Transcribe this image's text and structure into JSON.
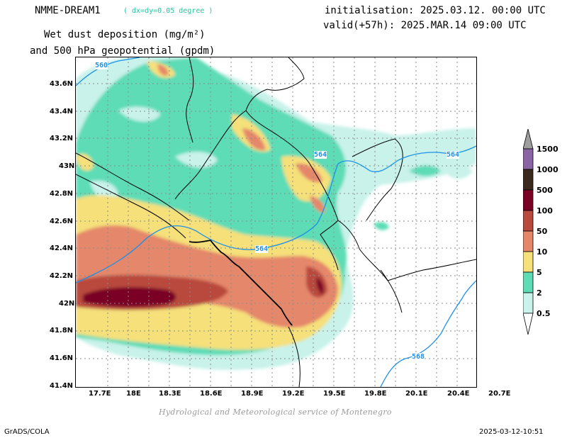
{
  "header": {
    "model": "NMME-DREAM1",
    "resolution": "( dx=dy=0.05 degree )",
    "field_line1": "Wet dust deposition (mg/m²)",
    "field_line2": "and 500 hPa geopotential (gpdm)",
    "init": "initialisation: 2025.03.12. 00:00 UTC",
    "valid": "valid(+57h): 2025.MAR.14 09:00 UTC"
  },
  "credit": "Hydrological and Meteorological service of Montenegro",
  "footer": {
    "left": "GrADS/COLA",
    "right": "2025-03-12-10:51"
  },
  "axes": {
    "x_ticks": [
      "17.7E",
      "18E",
      "18.3E",
      "18.6E",
      "18.9E",
      "19.2E",
      "19.5E",
      "19.8E",
      "20.1E",
      "20.4E",
      "20.7E"
    ],
    "y_ticks": [
      "43.6N",
      "43.4N",
      "43.2N",
      "43N",
      "42.8N",
      "42.6N",
      "42.4N",
      "42.2N",
      "42N",
      "41.8N",
      "41.6N",
      "41.4N"
    ]
  },
  "contours": {
    "labels": [
      "560",
      "564",
      "564",
      "564",
      "568"
    ],
    "color": "#1e90e6"
  },
  "colorbar": {
    "levels": [
      "1500",
      "1000",
      "500",
      "100",
      "50",
      "10",
      "5",
      "2",
      "0.5"
    ],
    "colors": [
      "#9e9e9e",
      "#8b64a6",
      "#3a2a1e",
      "#7a0025",
      "#b94a3e",
      "#e5876a",
      "#f5e07a",
      "#5ddcb6",
      "#c8f2ea"
    ]
  }
}
